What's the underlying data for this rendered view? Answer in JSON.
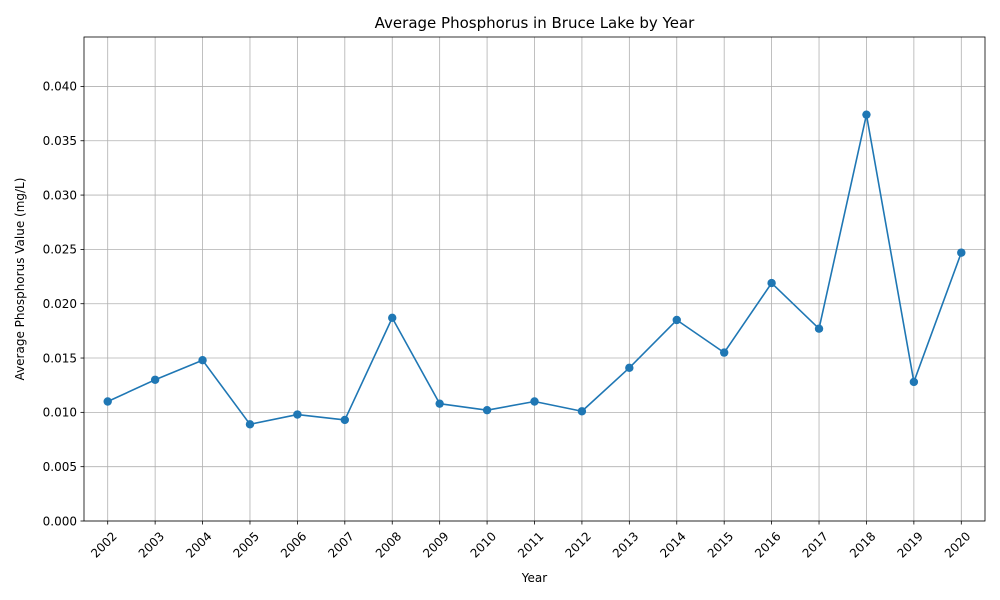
{
  "chart_data": {
    "type": "line",
    "title": "Average Phosphorus in Bruce Lake by Year",
    "xlabel": "Year",
    "ylabel": "Average Phosphorus Value (mg/L)",
    "x": [
      "2002",
      "2003",
      "2004",
      "2005",
      "2006",
      "2007",
      "2008",
      "2009",
      "2010",
      "2011",
      "2012",
      "2013",
      "2014",
      "2015",
      "2016",
      "2017",
      "2018",
      "2019",
      "2020"
    ],
    "series": [
      {
        "values": [
          0.011,
          0.013,
          0.0148,
          0.0089,
          0.0098,
          0.0093,
          0.0187,
          0.0108,
          0.0102,
          0.011,
          0.0101,
          0.0141,
          0.0185,
          0.0155,
          0.0219,
          0.0177,
          0.0374,
          0.0128,
          0.0247
        ],
        "color": "#1f77b4",
        "marker": "circle"
      }
    ],
    "ylim": [
      0,
      0.04455
    ],
    "yticks": [
      "0.000",
      "0.005",
      "0.010",
      "0.015",
      "0.020",
      "0.025",
      "0.030",
      "0.035",
      "0.040"
    ],
    "grid": true,
    "legend": "none"
  }
}
